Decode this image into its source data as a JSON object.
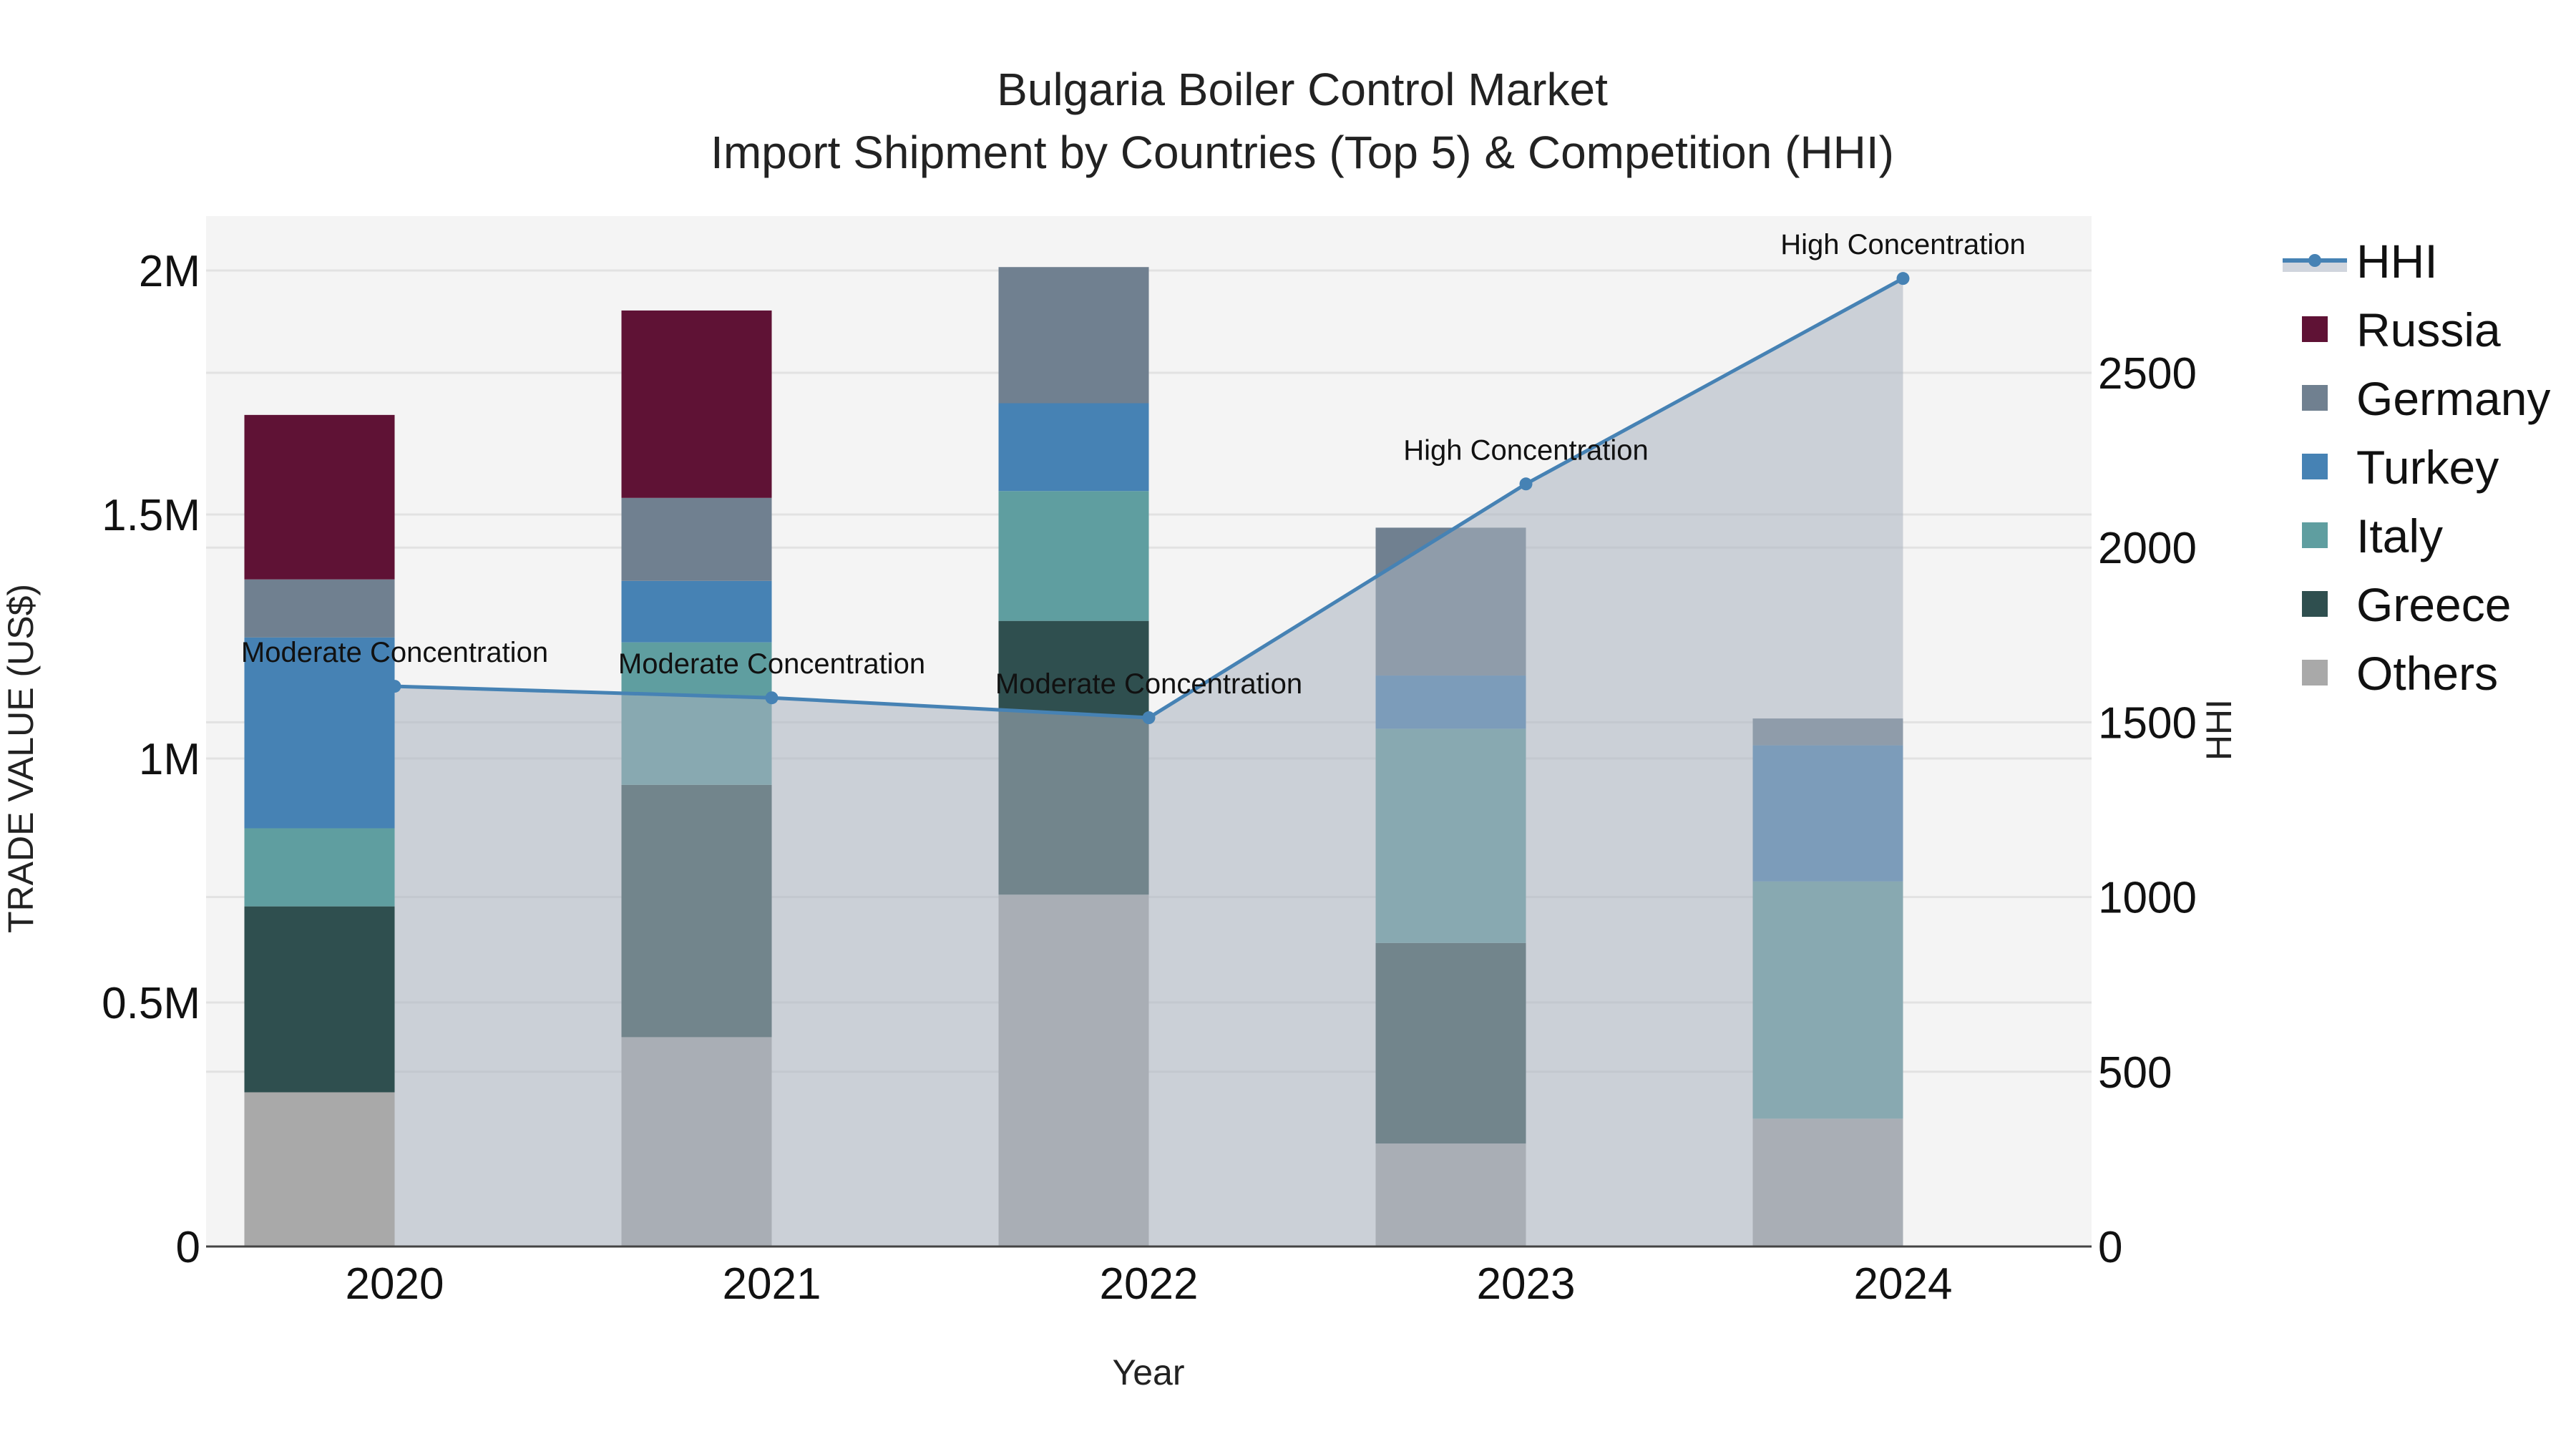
{
  "title": {
    "line1": "Bulgaria Boiler Control Market",
    "line2": "Import Shipment by Countries (Top 5) & Competition (HHI)"
  },
  "chart_data": {
    "type": "bar",
    "stacked": true,
    "title": "Bulgaria Boiler Control Market — Import Shipment by Countries (Top 5) & Competition (HHI)",
    "xlabel": "Year",
    "ylabel": "TRADE VALUE (US$)",
    "y2label": "HHI",
    "categories": [
      "2020",
      "2021",
      "2022",
      "2023",
      "2024"
    ],
    "ylim": [
      0,
      2100000
    ],
    "y2lim": [
      0,
      2950
    ],
    "yticks": [
      {
        "v": 0,
        "label": "0"
      },
      {
        "v": 500000,
        "label": "0.5M"
      },
      {
        "v": 1000000,
        "label": "1M"
      },
      {
        "v": 1500000,
        "label": "1.5M"
      },
      {
        "v": 2000000,
        "label": "2M"
      }
    ],
    "y2ticks": [
      0,
      500,
      1000,
      1500,
      2000,
      2500
    ],
    "series": [
      {
        "name": "Others",
        "color": "#a9a9a9",
        "values": [
          316000,
          429000,
          721000,
          211000,
          262000
        ]
      },
      {
        "name": "Greece",
        "color": "#2f4f4f",
        "values": [
          381000,
          517000,
          561000,
          411000,
          0
        ]
      },
      {
        "name": "Italy",
        "color": "#5f9ea0",
        "values": [
          160000,
          292000,
          266000,
          439000,
          486000
        ]
      },
      {
        "name": "Turkey",
        "color": "#4682b4",
        "values": [
          391000,
          126000,
          180000,
          109000,
          279000
        ]
      },
      {
        "name": "Germany",
        "color": "#708090",
        "values": [
          119000,
          170000,
          279000,
          303000,
          55000
        ]
      },
      {
        "name": "Russia",
        "color": "#5f1235",
        "values": [
          337000,
          384000,
          0,
          0,
          0
        ]
      }
    ],
    "line_series": {
      "name": "HHI",
      "axis": "y2",
      "color": "#4682b4",
      "fill": "rgba(160,170,185,0.5)",
      "values": [
        1603,
        1570,
        1513,
        2182,
        2770
      ],
      "labels": [
        "Moderate Concentration",
        "Moderate Concentration",
        "Moderate Concentration",
        "High Concentration",
        "High Concentration"
      ]
    },
    "legend": [
      "HHI",
      "Russia",
      "Germany",
      "Turkey",
      "Italy",
      "Greece",
      "Others"
    ],
    "legend_position": "right",
    "grid": true
  }
}
